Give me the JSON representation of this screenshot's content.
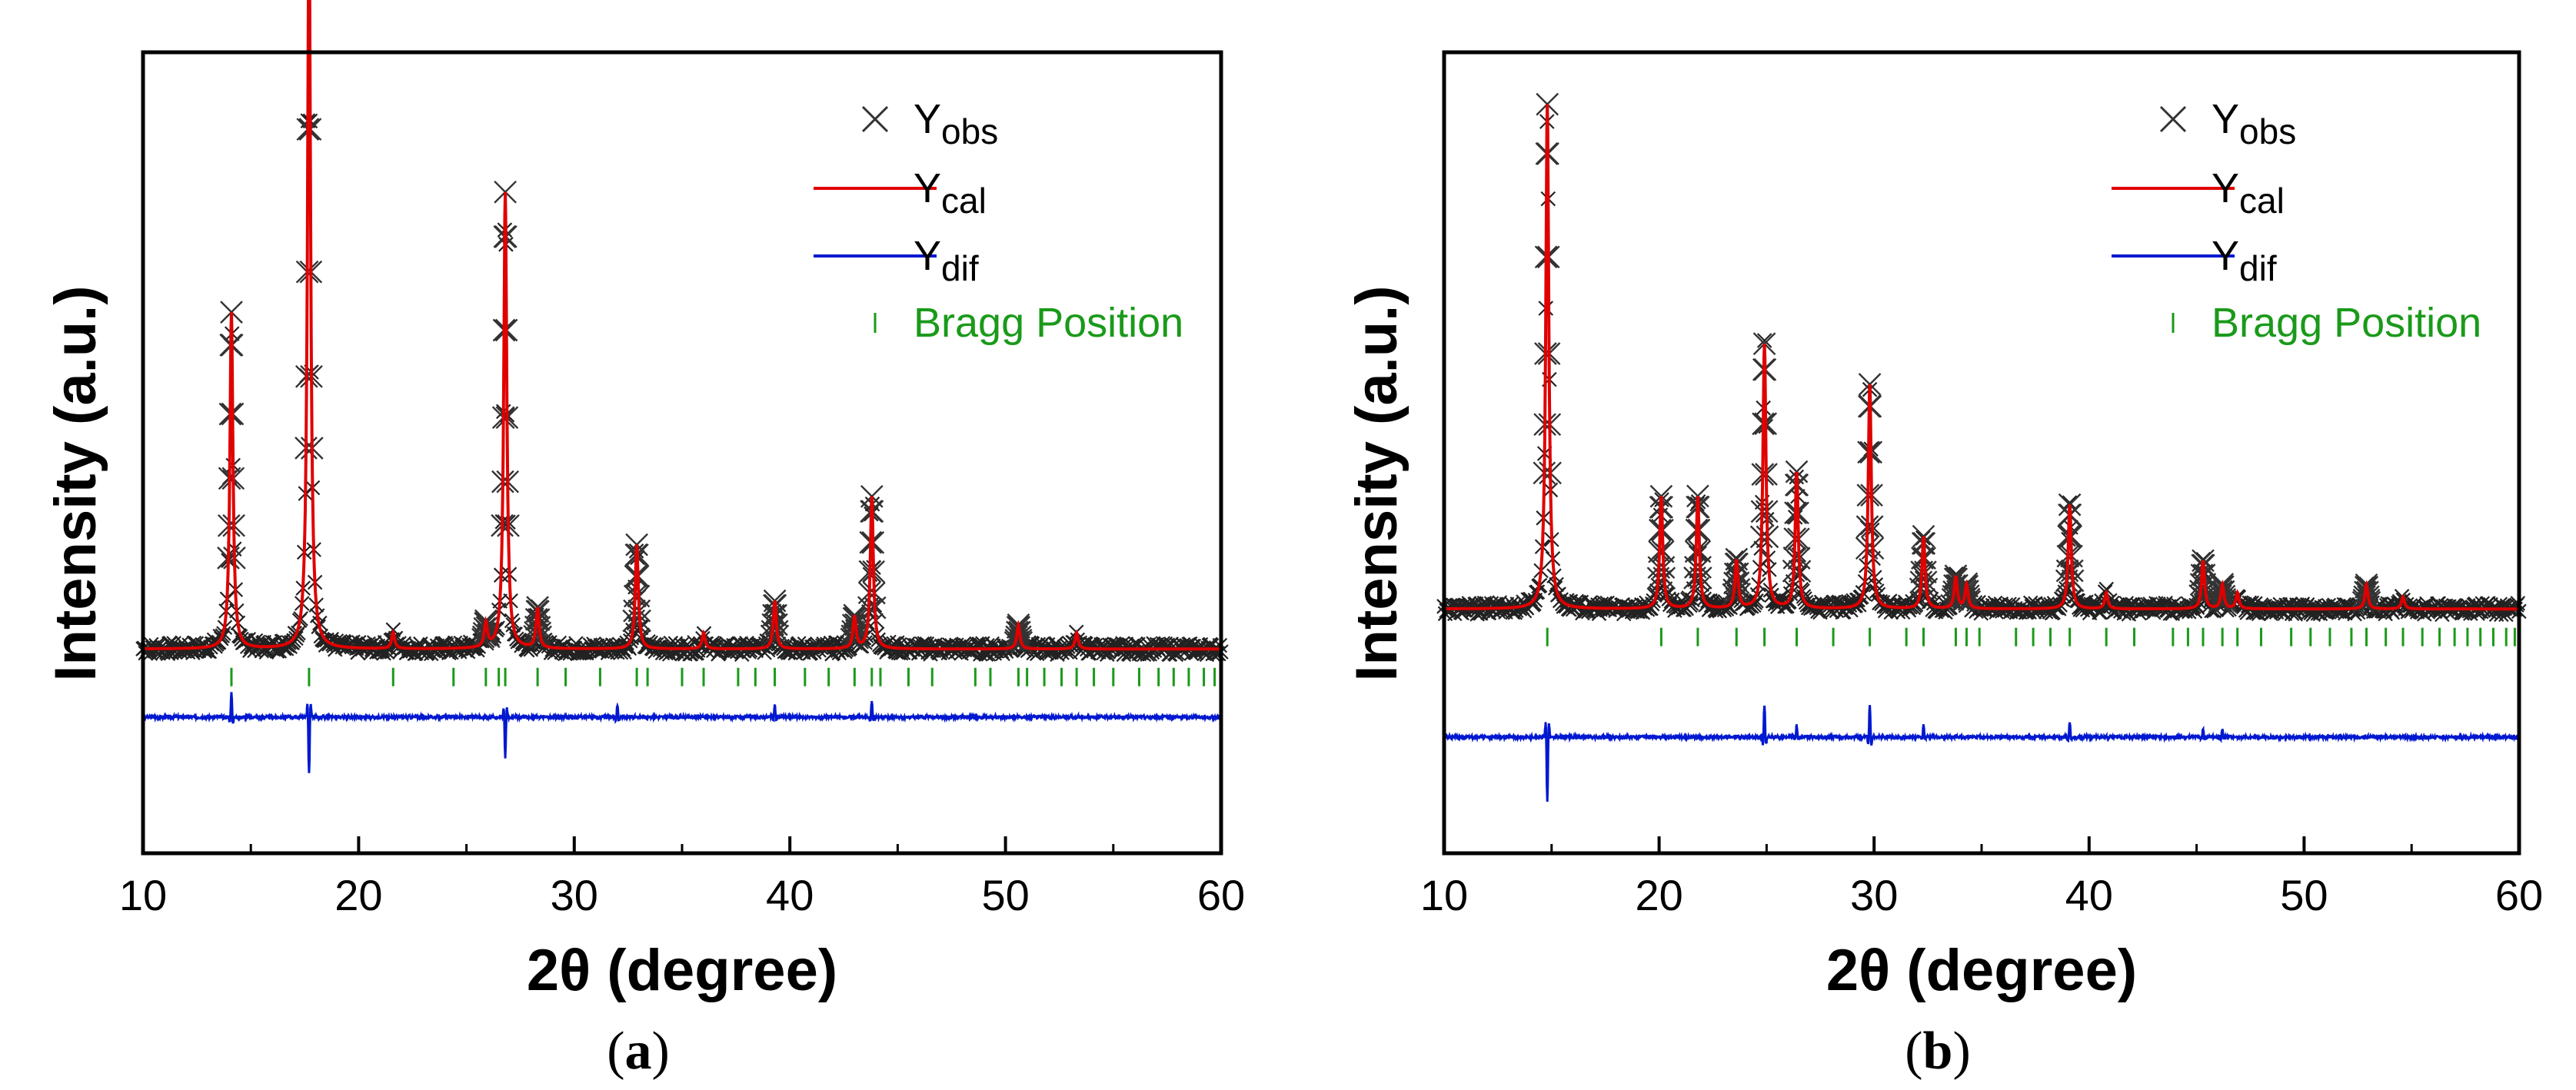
{
  "colors": {
    "observed": "#222222",
    "calculated": "#e00000",
    "difference": "#0018d0",
    "bragg": "#1a9a1a",
    "frame": "#000000"
  },
  "chart_data": [
    {
      "type": "line",
      "panel_label": "a",
      "xlabel": "2θ (degree)",
      "ylabel": "Intensity (a.u.)",
      "xlim": [
        10,
        60
      ],
      "xticks": [
        "10",
        "20",
        "30",
        "40",
        "50",
        "60"
      ],
      "ylim": [
        0,
        100
      ],
      "grid": false,
      "legend_position": "top-right",
      "legend": [
        {
          "marker": "x",
          "main": "Y",
          "sub": "obs"
        },
        {
          "marker": "line-red",
          "main": "Y",
          "sub": "cal"
        },
        {
          "marker": "line-blue",
          "main": "Y",
          "sub": "dif"
        },
        {
          "marker": "tick",
          "main": "Bragg Position",
          "sub": ""
        }
      ],
      "background_level": 25.5,
      "difference_baseline": 17.0,
      "bragg_row_level": 22.0,
      "peaks": [
        {
          "x": 14.1,
          "y": 42
        },
        {
          "x": 17.7,
          "y": 93
        },
        {
          "x": 21.6,
          "y": 2
        },
        {
          "x": 25.9,
          "y": 3
        },
        {
          "x": 26.8,
          "y": 57
        },
        {
          "x": 28.3,
          "y": 5
        },
        {
          "x": 32.9,
          "y": 13
        },
        {
          "x": 36.0,
          "y": 2
        },
        {
          "x": 39.3,
          "y": 6
        },
        {
          "x": 43.0,
          "y": 4
        },
        {
          "x": 43.8,
          "y": 19
        },
        {
          "x": 50.6,
          "y": 3
        },
        {
          "x": 53.3,
          "y": 2
        }
      ],
      "difference_features": [
        {
          "x": 14.1,
          "amp": 3
        },
        {
          "x": 17.7,
          "amp": -7
        },
        {
          "x": 26.8,
          "amp": -5
        },
        {
          "x": 32.0,
          "amp": 1.5
        },
        {
          "x": 39.3,
          "amp": 1.5
        },
        {
          "x": 43.8,
          "amp": 2
        }
      ],
      "bragg_positions": [
        14.1,
        17.7,
        21.6,
        24.4,
        25.9,
        26.5,
        26.8,
        28.3,
        29.6,
        31.2,
        32.9,
        33.4,
        35.0,
        36.0,
        37.6,
        38.4,
        39.3,
        40.7,
        41.8,
        43.0,
        43.8,
        44.2,
        45.5,
        46.6,
        48.6,
        49.3,
        50.6,
        51.0,
        51.8,
        52.6,
        53.3,
        54.1,
        55.0,
        56.2,
        57.1,
        57.8,
        58.5,
        59.2,
        59.7
      ]
    },
    {
      "type": "line",
      "panel_label": "b",
      "xlabel": "2θ (degree)",
      "ylabel": "Intensity (a.u.)",
      "xlim": [
        10,
        60
      ],
      "xticks": [
        "10",
        "20",
        "30",
        "40",
        "50",
        "60"
      ],
      "ylim": [
        0,
        100
      ],
      "grid": false,
      "legend_position": "top-right",
      "legend": [
        {
          "marker": "x",
          "main": "Y",
          "sub": "obs"
        },
        {
          "marker": "line-red",
          "main": "Y",
          "sub": "cal"
        },
        {
          "marker": "line-blue",
          "main": "Y",
          "sub": "dif"
        },
        {
          "marker": "tick",
          "main": "Bragg Position",
          "sub": ""
        }
      ],
      "background_level": 30.5,
      "difference_baseline": 14.5,
      "bragg_row_level": 27.0,
      "peaks": [
        {
          "x": 14.8,
          "y": 63
        },
        {
          "x": 20.1,
          "y": 14
        },
        {
          "x": 21.8,
          "y": 14
        },
        {
          "x": 23.6,
          "y": 6
        },
        {
          "x": 24.9,
          "y": 33
        },
        {
          "x": 26.4,
          "y": 17
        },
        {
          "x": 29.8,
          "y": 28
        },
        {
          "x": 32.3,
          "y": 9
        },
        {
          "x": 33.8,
          "y": 4
        },
        {
          "x": 34.3,
          "y": 3
        },
        {
          "x": 39.1,
          "y": 13
        },
        {
          "x": 40.8,
          "y": 2
        },
        {
          "x": 45.3,
          "y": 6
        },
        {
          "x": 46.2,
          "y": 3
        },
        {
          "x": 46.9,
          "y": 2
        },
        {
          "x": 52.9,
          "y": 3
        },
        {
          "x": 54.6,
          "y": 1.5
        }
      ],
      "difference_features": [
        {
          "x": 14.8,
          "amp": -8
        },
        {
          "x": 24.9,
          "amp": 4
        },
        {
          "x": 26.4,
          "amp": 1.5
        },
        {
          "x": 29.8,
          "amp": 4
        },
        {
          "x": 32.3,
          "amp": 1.5
        },
        {
          "x": 39.1,
          "amp": 2
        },
        {
          "x": 45.3,
          "amp": 1
        },
        {
          "x": 46.2,
          "amp": 1
        }
      ],
      "bragg_positions": [
        14.8,
        20.1,
        21.8,
        23.6,
        24.9,
        26.4,
        28.1,
        29.8,
        31.5,
        32.3,
        33.8,
        34.3,
        34.9,
        36.6,
        37.4,
        38.2,
        39.1,
        40.8,
        42.1,
        43.9,
        44.6,
        45.3,
        46.2,
        46.9,
        48.0,
        49.4,
        50.3,
        51.2,
        52.2,
        52.9,
        53.8,
        54.6,
        55.5,
        56.3,
        57.0,
        57.6,
        58.2,
        58.8,
        59.4,
        59.8
      ]
    }
  ]
}
